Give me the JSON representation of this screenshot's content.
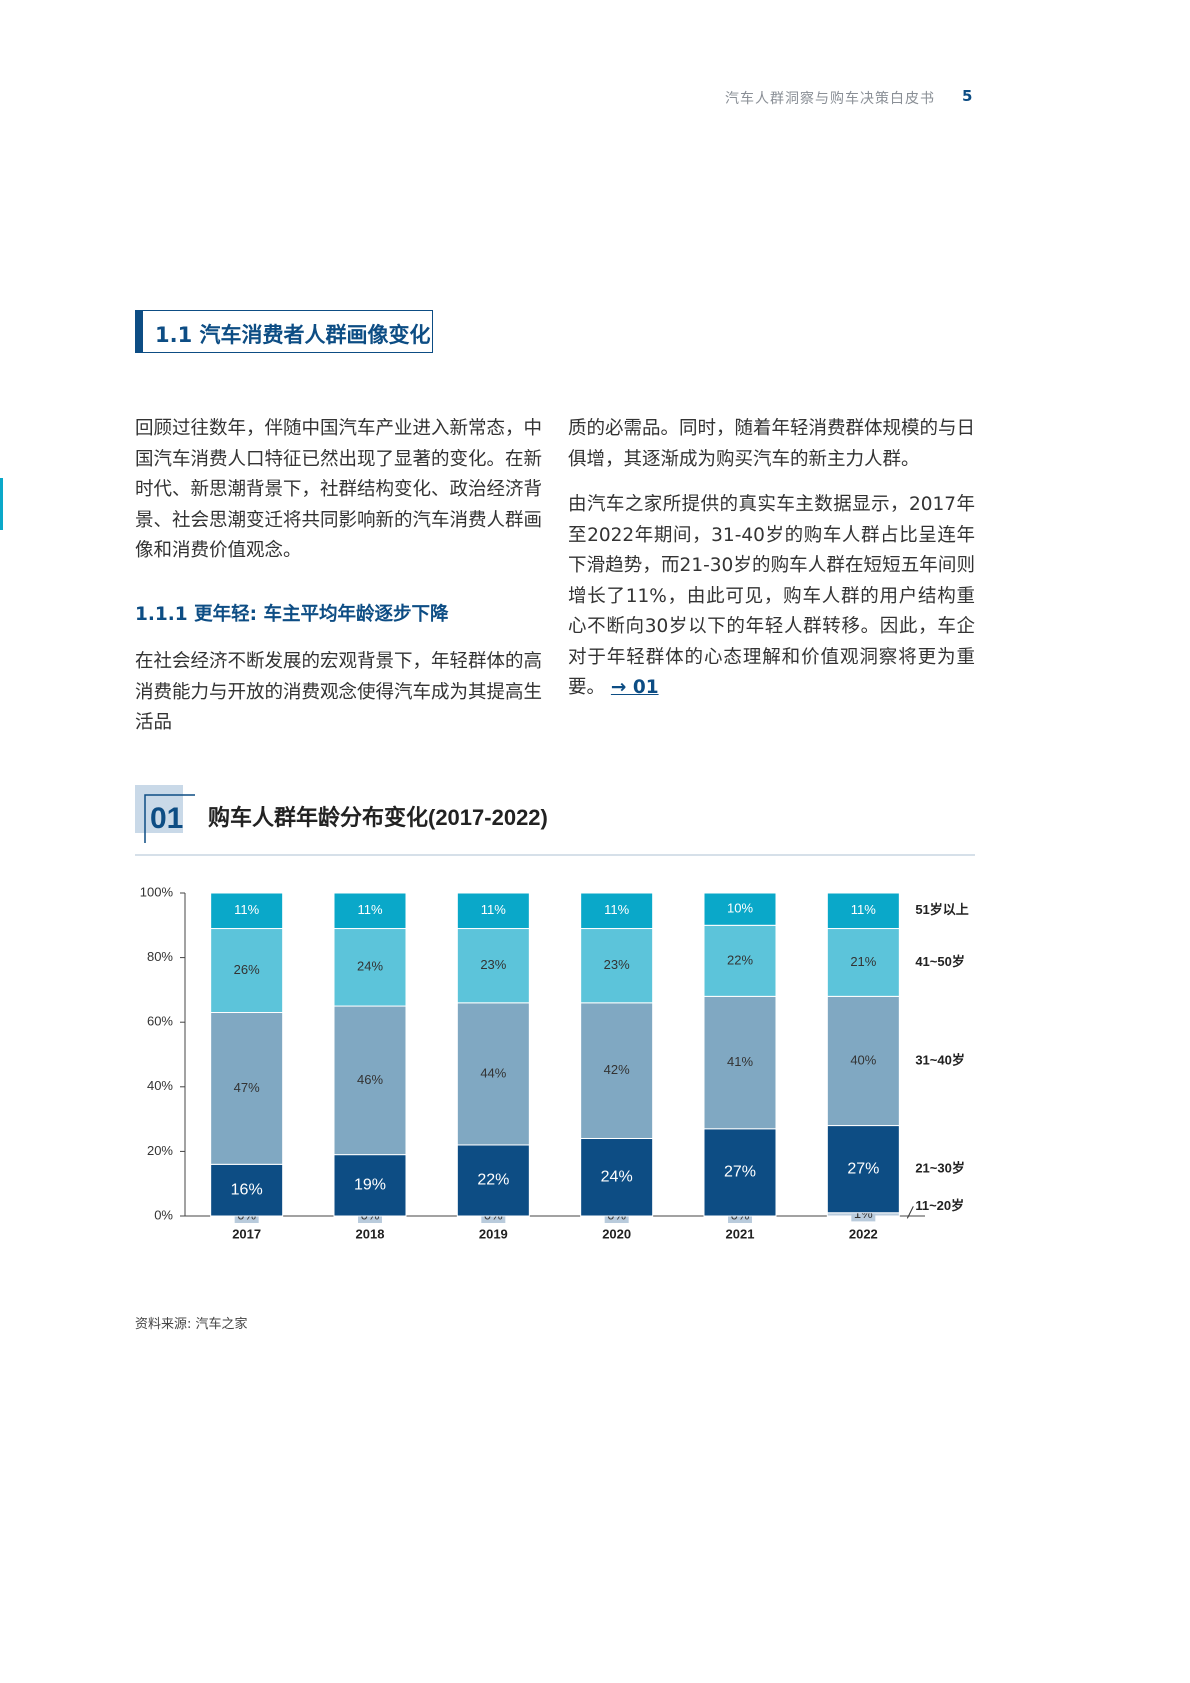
{
  "header": {
    "title": "汽车人群洞察与购车决策白皮书",
    "page": "5"
  },
  "section": {
    "title": "1.1 汽车消费者人群画像变化"
  },
  "body": {
    "intro": "回顾过往数年，伴随中国汽车产业进入新常态，中国汽车消费人口特征已然出现了显著的变化。在新时代、新思潮背景下，社群结构变化、政治经济背景、社会思潮变迁将共同影响新的汽车消费人群画像和消费价值观念。",
    "subheading": "1.1.1 更年轻: 车主平均年龄逐步下降",
    "para2_part1": "在社会经济不断发展的宏观背景下，年轻群体的高消费能力与开放的消费观念使得汽车成为其提高生活品",
    "para2_part2": "质的必需品。同时，随着年轻消费群体规模的与日俱增，其逐渐成为购买汽车的新主力人群。",
    "para3": "由汽车之家所提供的真实车主数据显示，2017年至2022年期间，31-40岁的购车人群占比呈连年下滑趋势，而21-30岁的购车人群在短短五年间则增长了11%，由此可见，购车人群的用户结构重心不断向30岁以下的年轻人群转移。因此，车企对于年轻群体的心态理解和价值观洞察将更为重要。",
    "link": "→ 01"
  },
  "figure": {
    "number": "01",
    "title": "购车人群年龄分布变化(2017-2022)"
  },
  "chart_data": {
    "type": "stacked_bar",
    "categories": [
      "2017",
      "2018",
      "2019",
      "2020",
      "2021",
      "2022"
    ],
    "ylim": [
      0,
      100
    ],
    "yticks": [
      {
        "value": 0,
        "label": "0%"
      },
      {
        "value": 20,
        "label": "20%"
      },
      {
        "value": 40,
        "label": "40%"
      },
      {
        "value": 60,
        "label": "60%"
      },
      {
        "value": 80,
        "label": "80%"
      },
      {
        "value": 100,
        "label": "100%"
      }
    ],
    "series": [
      {
        "name": "11~20岁",
        "color": "#b9cbdc",
        "text_color": "#333333",
        "values": [
          0,
          0,
          0,
          0,
          0,
          1
        ],
        "value_labels": [
          "0%",
          "0%",
          "0%",
          "0%",
          "0%",
          "1%"
        ]
      },
      {
        "name": "21~30岁",
        "color": "#0d4d84",
        "text_color": "#ffffff",
        "values": [
          16,
          19,
          22,
          24,
          27,
          27
        ],
        "value_labels": [
          "16%",
          "19%",
          "22%",
          "24%",
          "27%",
          "27%"
        ]
      },
      {
        "name": "31~40岁",
        "color": "#80a8c2",
        "text_color": "#333333",
        "values": [
          47,
          46,
          44,
          42,
          41,
          40
        ],
        "value_labels": [
          "47%",
          "46%",
          "44%",
          "42%",
          "41%",
          "40%"
        ]
      },
      {
        "name": "41~50岁",
        "color": "#5cc4da",
        "text_color": "#333333",
        "values": [
          26,
          24,
          23,
          23,
          22,
          21
        ],
        "value_labels": [
          "26%",
          "24%",
          "23%",
          "23%",
          "22%",
          "21%"
        ]
      },
      {
        "name": "51岁以上",
        "color": "#0aa8c9",
        "text_color": "#ffffff",
        "values": [
          11,
          11,
          11,
          11,
          10,
          11
        ],
        "value_labels": [
          "11%",
          "11%",
          "11%",
          "11%",
          "10%",
          "11%"
        ]
      }
    ]
  },
  "source": "资料来源: 汽车之家"
}
